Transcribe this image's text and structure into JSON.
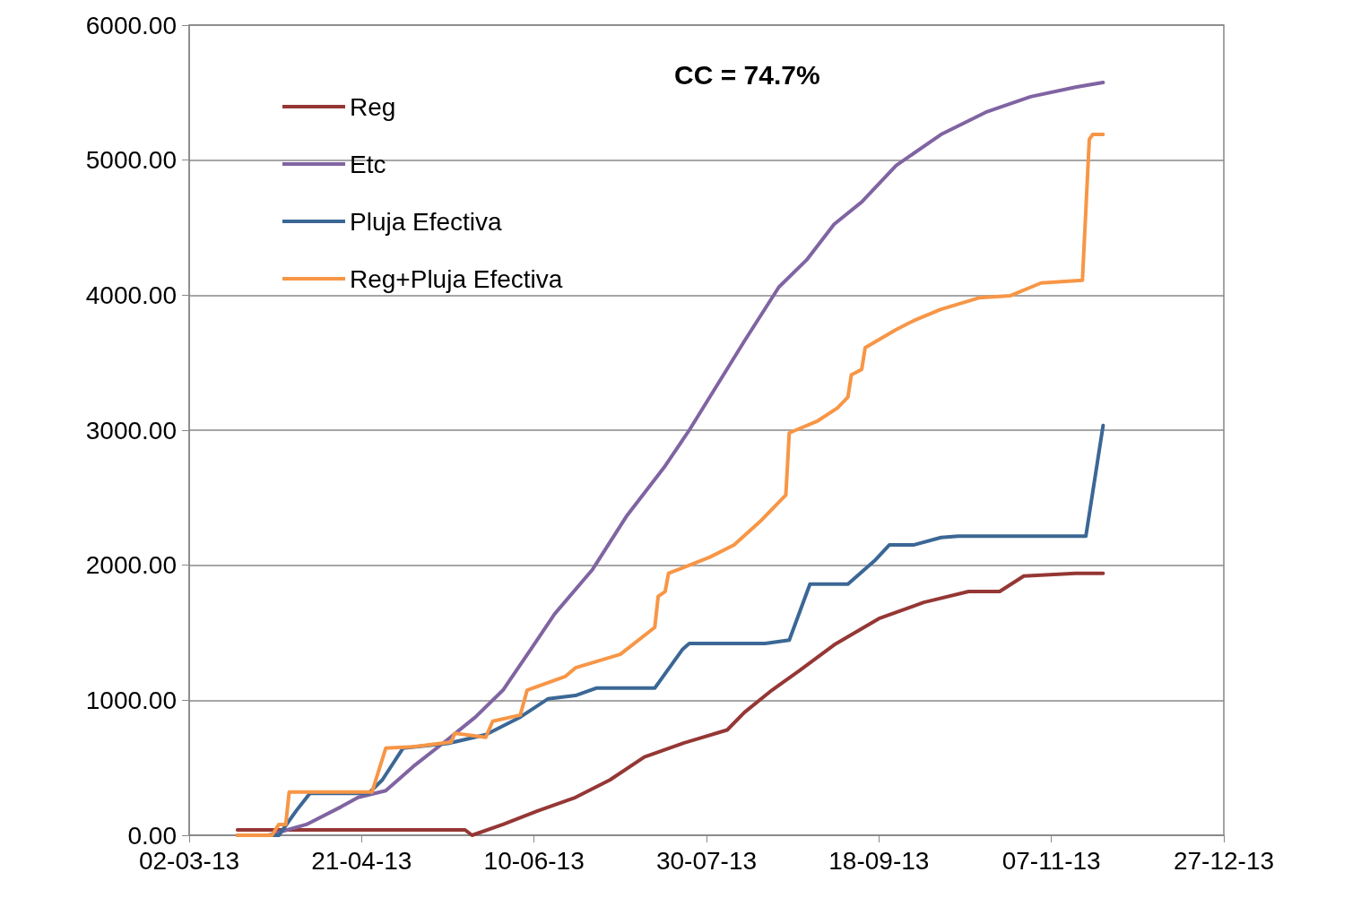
{
  "chart_data": {
    "type": "line",
    "annotations": [
      "CC = 74.7%"
    ],
    "xlim": [
      "2013-03-02",
      "2013-12-27"
    ],
    "xticks": [
      {
        "value": "2013-03-02",
        "label": "02-03-13"
      },
      {
        "value": "2013-04-21",
        "label": "21-04-13"
      },
      {
        "value": "2013-06-10",
        "label": "10-06-13"
      },
      {
        "value": "2013-07-30",
        "label": "30-07-13"
      },
      {
        "value": "2013-09-18",
        "label": "18-09-13"
      },
      {
        "value": "2013-11-07",
        "label": "07-11-13"
      },
      {
        "value": "2013-12-27",
        "label": "27-12-13"
      }
    ],
    "ylim": [
      0,
      6000
    ],
    "yticks": [
      {
        "value": 0,
        "label": "0.00"
      },
      {
        "value": 1000,
        "label": "1000.00"
      },
      {
        "value": 2000,
        "label": "2000.00"
      },
      {
        "value": 3000,
        "label": "3000.00"
      },
      {
        "value": 4000,
        "label": "4000.00"
      },
      {
        "value": 5000,
        "label": "5000.00"
      },
      {
        "value": 6000,
        "label": "6000.00"
      }
    ],
    "grid": "y",
    "legend": "top left",
    "marker": "none",
    "line_style": "solid",
    "series": [
      {
        "name": "Reg",
        "color": "#953735",
        "x": [
          "2013-03-16",
          "2013-05-21",
          "2013-05-23",
          "2013-06-01",
          "2013-06-11",
          "2013-06-22",
          "2013-07-02",
          "2013-07-12",
          "2013-07-23",
          "2013-08-05",
          "2013-08-10",
          "2013-08-18",
          "2013-08-26",
          "2013-09-05",
          "2013-09-18",
          "2013-10-01",
          "2013-10-14",
          "2013-10-23",
          "2013-10-30",
          "2013-11-14",
          "2013-11-22"
        ],
        "values": [
          40,
          40,
          0,
          80,
          180,
          280,
          410,
          580,
          680,
          780,
          910,
          1075,
          1220,
          1410,
          1605,
          1725,
          1805,
          1805,
          1920,
          1940,
          1940
        ]
      },
      {
        "name": "Etc",
        "color": "#8064a2",
        "x": [
          "2013-03-25",
          "2013-04-05",
          "2013-04-15",
          "2013-04-20",
          "2013-04-28",
          "2013-05-06",
          "2013-05-16",
          "2013-05-24",
          "2013-06-01",
          "2013-06-09",
          "2013-06-16",
          "2013-06-27",
          "2013-07-07",
          "2013-07-18",
          "2013-07-25",
          "2013-08-02",
          "2013-08-10",
          "2013-08-20",
          "2013-08-28",
          "2013-09-05",
          "2013-09-13",
          "2013-09-23",
          "2013-10-06",
          "2013-10-19",
          "2013-11-01",
          "2013-11-14",
          "2013-11-22"
        ],
        "values": [
          0,
          80,
          210,
          280,
          330,
          510,
          710,
          875,
          1075,
          1375,
          1640,
          1970,
          2370,
          2735,
          3000,
          3330,
          3660,
          4060,
          4260,
          4525,
          4690,
          4960,
          5190,
          5355,
          5470,
          5540,
          5575
        ]
      },
      {
        "name": "Pluja Efectiva",
        "color": "#3b6795",
        "x": [
          "2013-03-16",
          "2013-03-28",
          "2013-04-02",
          "2013-04-06",
          "2013-04-23",
          "2013-04-27",
          "2013-05-03",
          "2013-05-16",
          "2013-05-27",
          "2013-06-06",
          "2013-06-14",
          "2013-06-22",
          "2013-06-28",
          "2013-07-15",
          "2013-07-23",
          "2013-07-25",
          "2013-08-16",
          "2013-08-23",
          "2013-08-29",
          "2013-09-09",
          "2013-09-17",
          "2013-09-21",
          "2013-09-28",
          "2013-10-06",
          "2013-10-11",
          "2013-11-17",
          "2013-11-22"
        ],
        "values": [
          0,
          0,
          180,
          310,
          310,
          410,
          645,
          680,
          745,
          875,
          1010,
          1035,
          1090,
          1090,
          1375,
          1420,
          1420,
          1445,
          1860,
          1860,
          2040,
          2150,
          2150,
          2205,
          2215,
          2215,
          3035
        ]
      },
      {
        "name": "Reg+Pluja Efectiva",
        "color": "#f79646",
        "x": [
          "2013-03-16",
          "2013-03-26",
          "2013-03-28",
          "2013-03-30",
          "2013-03-31",
          "2013-04-24",
          "2013-04-28",
          "2013-05-06",
          "2013-05-17",
          "2013-05-18",
          "2013-05-27",
          "2013-05-29",
          "2013-06-06",
          "2013-06-08",
          "2013-06-19",
          "2013-06-22",
          "2013-07-05",
          "2013-07-15",
          "2013-07-16",
          "2013-07-18",
          "2013-07-19",
          "2013-07-31",
          "2013-08-07",
          "2013-08-15",
          "2013-08-22",
          "2013-08-23",
          "2013-08-31",
          "2013-09-06",
          "2013-09-09",
          "2013-09-10",
          "2013-09-13",
          "2013-09-14",
          "2013-09-23",
          "2013-09-28",
          "2013-10-06",
          "2013-10-17",
          "2013-10-26",
          "2013-11-04",
          "2013-11-16",
          "2013-11-18",
          "2013-11-19",
          "2013-11-22"
        ],
        "values": [
          0,
          0,
          80,
          80,
          320,
          320,
          645,
          655,
          690,
          755,
          725,
          845,
          890,
          1075,
          1175,
          1240,
          1340,
          1540,
          1770,
          1805,
          1940,
          2060,
          2150,
          2335,
          2520,
          2980,
          3065,
          3165,
          3245,
          3410,
          3450,
          3610,
          3745,
          3810,
          3895,
          3980,
          3995,
          4090,
          4110,
          5155,
          5190,
          5190
        ]
      }
    ]
  }
}
